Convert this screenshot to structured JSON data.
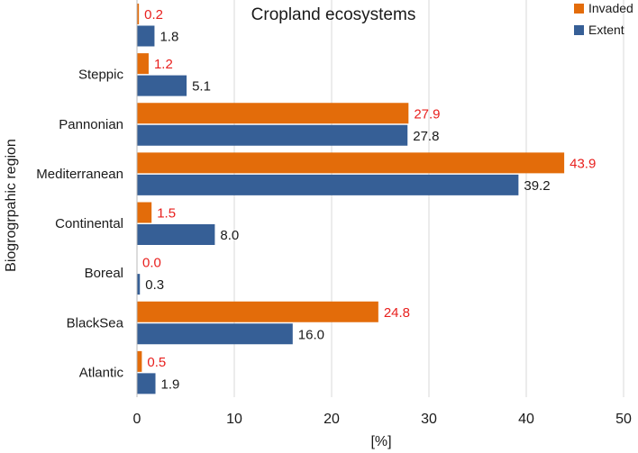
{
  "chart_data": {
    "type": "bar",
    "orientation": "horizontal",
    "title": "Cropland ecosystems",
    "xlabel": "[%]",
    "ylabel": "Biogrogrpahic region",
    "xlim": [
      0,
      50
    ],
    "x_ticks": [
      0,
      10,
      20,
      30,
      40,
      50
    ],
    "x_tick_labels": [
      "0",
      "10",
      "20",
      "30",
      "40",
      "50"
    ],
    "grid": "vertical",
    "legend_position": "top-right",
    "categories": [
      "",
      "Steppic",
      "Pannonian",
      "Mediterranean",
      "Continental",
      "Boreal",
      "BlackSea",
      "Atlantic"
    ],
    "series": [
      {
        "name": "Invaded",
        "color": "#E36C0A",
        "label_color": "#E8201E",
        "values": [
          0.2,
          1.2,
          27.9,
          43.9,
          1.5,
          0.0,
          24.8,
          0.5
        ],
        "value_labels": [
          "0.2",
          "1.2",
          "27.9",
          "43.9",
          "1.5",
          "0.0",
          "24.8",
          "0.5"
        ]
      },
      {
        "name": "Extent",
        "color": "#365F96",
        "label_color": "#1a1a1a",
        "values": [
          1.8,
          5.1,
          27.8,
          39.2,
          8.0,
          0.3,
          16.0,
          1.9
        ],
        "value_labels": [
          "1.8",
          "5.1",
          "27.8",
          "39.2",
          "8.0",
          "0.3",
          "16.0",
          "1.9"
        ]
      }
    ]
  }
}
